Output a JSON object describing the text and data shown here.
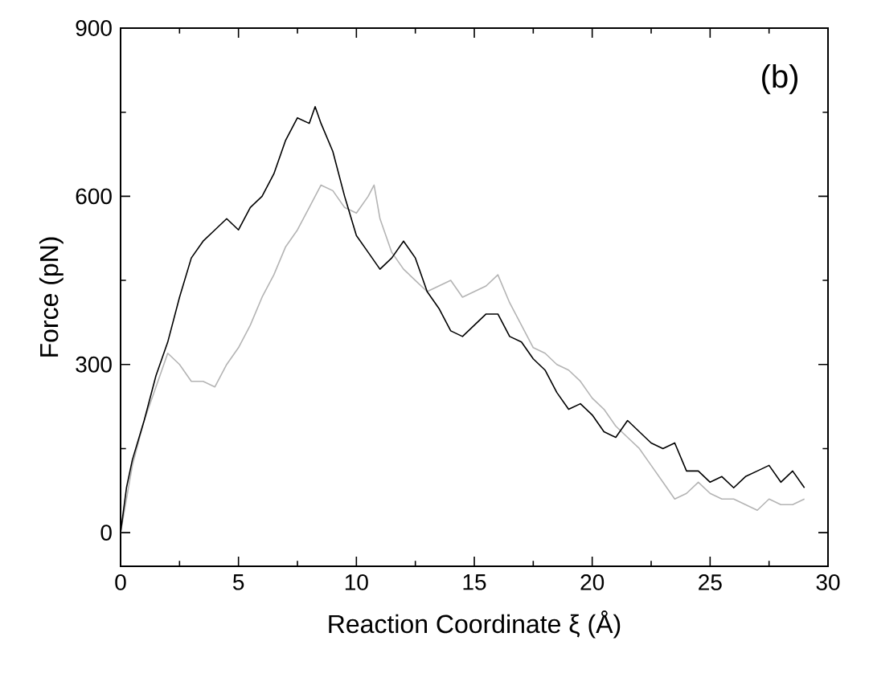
{
  "chart_data": {
    "type": "line",
    "xlabel": "Reaction Coordinate ξ (Å)",
    "ylabel": "Force (pN)",
    "annotations": [
      "(b)"
    ],
    "xlim": [
      0,
      30
    ],
    "ylim": [
      -60,
      900
    ],
    "xticks": [
      0,
      5,
      10,
      15,
      20,
      25,
      30
    ],
    "yticks": [
      0,
      300,
      600,
      900
    ],
    "grid": false,
    "marker": "none",
    "line_style": "solid",
    "series": [
      {
        "color": "#b4b4b4",
        "x": [
          0,
          0.5,
          1,
          1.5,
          2,
          2.5,
          3,
          3.5,
          4,
          4.5,
          5,
          5.5,
          6,
          6.5,
          7,
          7.5,
          8,
          8.5,
          9,
          9.5,
          10,
          10.5,
          10.75,
          11,
          11.5,
          12,
          12.5,
          13,
          13.5,
          14,
          14.5,
          15,
          15.5,
          16,
          16.5,
          17,
          17.5,
          18,
          18.5,
          19,
          19.5,
          20,
          20.5,
          21,
          21.5,
          22,
          22.5,
          23,
          23.5,
          24,
          24.5,
          25,
          25.5,
          26,
          26.5,
          27,
          27.5,
          28,
          28.5,
          29
        ],
        "values": [
          0,
          120,
          200,
          260,
          320,
          300,
          270,
          270,
          260,
          300,
          330,
          370,
          420,
          460,
          510,
          540,
          580,
          620,
          610,
          580,
          570,
          600,
          620,
          560,
          500,
          470,
          450,
          430,
          440,
          450,
          420,
          430,
          440,
          460,
          410,
          370,
          330,
          320,
          300,
          290,
          270,
          240,
          220,
          190,
          170,
          150,
          120,
          90,
          60,
          70,
          90,
          70,
          60,
          60,
          50,
          40,
          60,
          50,
          50,
          60
        ]
      },
      {
        "color": "#000000",
        "x": [
          0,
          0.25,
          0.5,
          1,
          1.5,
          2,
          2.5,
          3,
          3.5,
          4,
          4.5,
          5,
          5.5,
          6,
          6.5,
          7,
          7.5,
          8,
          8.25,
          8.5,
          9,
          9.5,
          10,
          10.5,
          11,
          11.5,
          12,
          12.5,
          13,
          13.5,
          14,
          14.5,
          15,
          15.5,
          16,
          16.5,
          17,
          17.5,
          18,
          18.5,
          19,
          19.5,
          20,
          20.5,
          21,
          21.5,
          22,
          22.5,
          23,
          23.5,
          24,
          24.5,
          25,
          25.5,
          26,
          26.5,
          27,
          27.5,
          28,
          28.5,
          29
        ],
        "values": [
          0,
          80,
          130,
          200,
          280,
          340,
          420,
          490,
          520,
          540,
          560,
          540,
          580,
          600,
          640,
          700,
          740,
          730,
          760,
          730,
          680,
          600,
          530,
          500,
          470,
          490,
          520,
          490,
          430,
          400,
          360,
          350,
          370,
          390,
          390,
          350,
          340,
          310,
          290,
          250,
          220,
          230,
          210,
          180,
          170,
          200,
          180,
          160,
          150,
          160,
          110,
          110,
          90,
          100,
          80,
          100,
          110,
          120,
          90,
          110,
          80
        ]
      }
    ]
  }
}
